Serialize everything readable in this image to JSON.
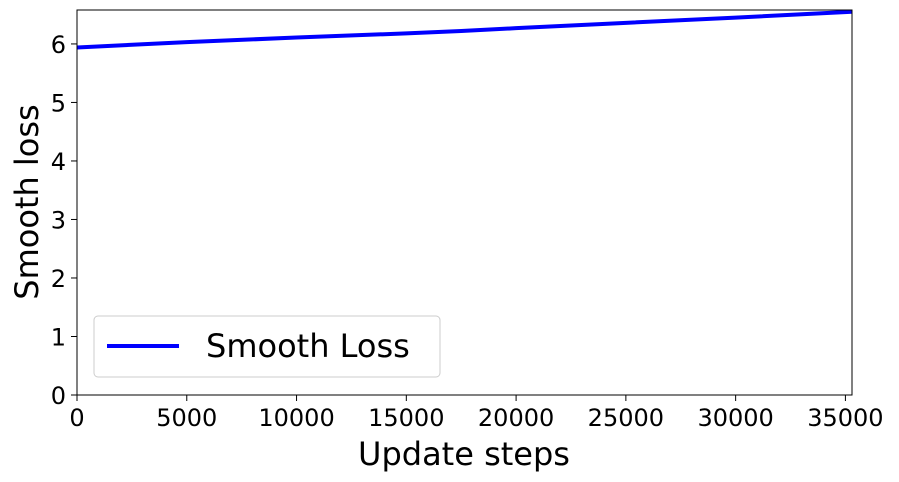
{
  "chart_data": {
    "type": "line",
    "xlabel": "Update steps",
    "ylabel": "Smooth loss",
    "xlim": [
      0,
      35300
    ],
    "ylim": [
      0,
      6.58
    ],
    "x_ticks": [
      0,
      5000,
      10000,
      15000,
      20000,
      25000,
      30000,
      35000
    ],
    "y_ticks": [
      0,
      1,
      2,
      3,
      4,
      5,
      6
    ],
    "grid": false,
    "legend_position": "lower-left",
    "series": [
      {
        "name": "Smooth Loss",
        "color": "#0000ff",
        "x": [
          0,
          5000,
          10000,
          15000,
          17500,
          20000,
          25000,
          30000,
          35300
        ],
        "y": [
          5.94,
          6.03,
          6.11,
          6.18,
          6.22,
          6.27,
          6.36,
          6.45,
          6.55
        ]
      }
    ]
  }
}
